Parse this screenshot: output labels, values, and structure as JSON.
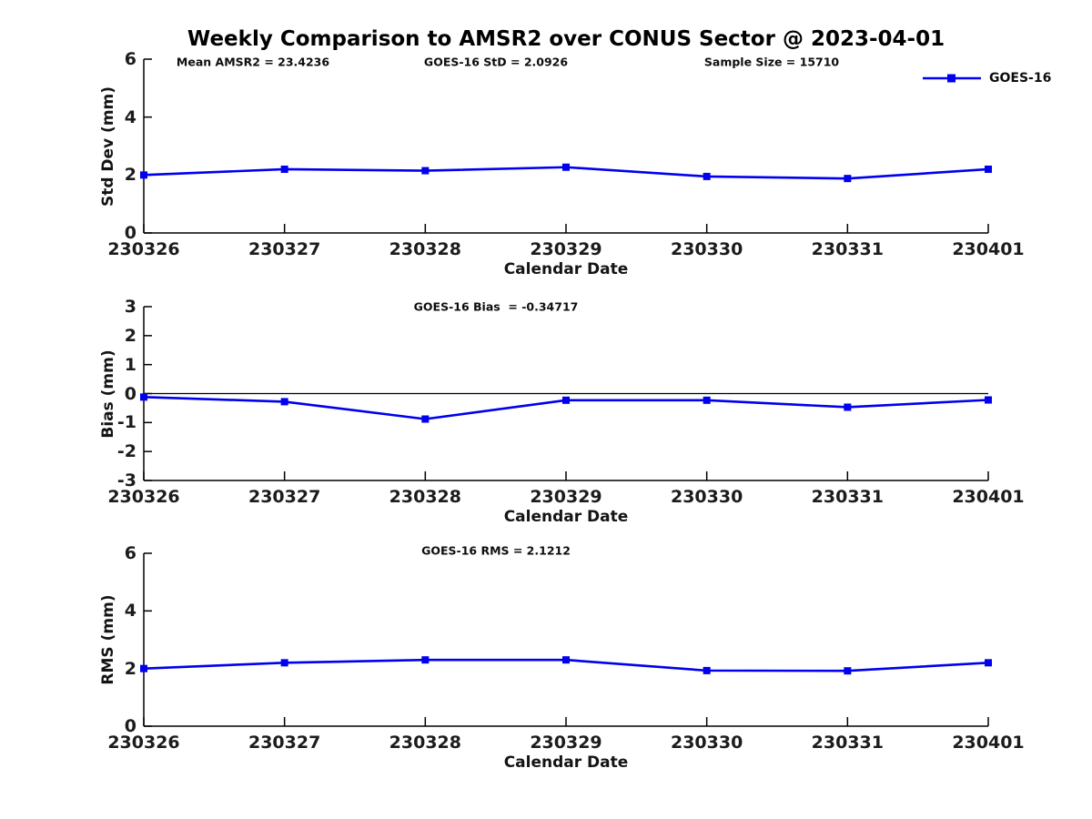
{
  "figure": {
    "title": "Weekly Comparison to AMSR2 over CONUS Sector @ 2023-04-01",
    "series_color": "#0000EE",
    "axis_color": "#000000",
    "legend": {
      "label": "GOES-16",
      "position": "top-right",
      "swatch": "line-with-square-marker"
    }
  },
  "chart_data": [
    {
      "type": "line",
      "name": "std-dev",
      "categories": [
        "230326",
        "230327",
        "230328",
        "230329",
        "230330",
        "230331",
        "230401"
      ],
      "series": [
        {
          "name": "GOES-16",
          "values": [
            2.0,
            2.2,
            2.15,
            2.27,
            1.95,
            1.88,
            2.2
          ]
        }
      ],
      "annotations": [
        "Mean AMSR2 = 23.4236",
        "GOES-16 StD = 2.0926",
        "Sample Size = 15710"
      ],
      "xlabel": "Calendar Date",
      "ylabel": "Std Dev (mm)",
      "ylim": [
        0,
        6
      ],
      "yticks": [
        0,
        2,
        4,
        6
      ],
      "zero_line": false,
      "grid": false,
      "legend_entries": [
        "GOES-16"
      ]
    },
    {
      "type": "line",
      "name": "bias",
      "categories": [
        "230326",
        "230327",
        "230328",
        "230329",
        "230330",
        "230331",
        "230401"
      ],
      "series": [
        {
          "name": "GOES-16",
          "values": [
            -0.12,
            -0.28,
            -0.88,
            -0.23,
            -0.23,
            -0.47,
            -0.22
          ]
        }
      ],
      "annotations": [
        "GOES-16 Bias  = -0.34717"
      ],
      "xlabel": "Calendar Date",
      "ylabel": "Bias (mm)",
      "ylim": [
        -3,
        3
      ],
      "yticks": [
        3,
        2,
        1,
        0,
        -1,
        -2,
        -3
      ],
      "zero_line": true,
      "grid": false,
      "legend_entries": []
    },
    {
      "type": "line",
      "name": "rms",
      "categories": [
        "230326",
        "230327",
        "230328",
        "230329",
        "230330",
        "230331",
        "230401"
      ],
      "series": [
        {
          "name": "GOES-16",
          "values": [
            2.0,
            2.2,
            2.3,
            2.3,
            1.93,
            1.92,
            2.2
          ]
        }
      ],
      "annotations": [
        "GOES-16 RMS = 2.1212"
      ],
      "xlabel": "Calendar Date",
      "ylabel": "RMS (mm)",
      "ylim": [
        0,
        6
      ],
      "yticks": [
        0,
        2,
        4,
        6
      ],
      "zero_line": false,
      "grid": false,
      "legend_entries": []
    }
  ]
}
